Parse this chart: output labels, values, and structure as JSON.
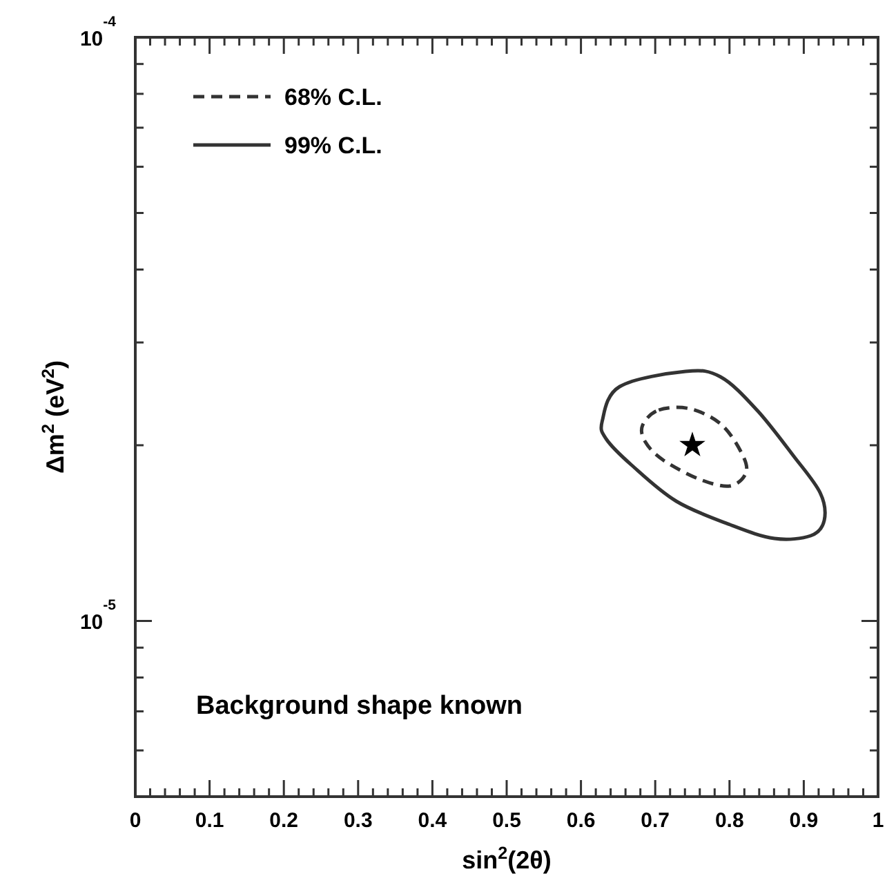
{
  "chart_data": {
    "type": "scatter",
    "xlabel": "sin$^{2}$(2θ)",
    "ylabel": "Δm$^{2}$ (eV$^{2}$)",
    "log": "y",
    "xlim": [
      0,
      1
    ],
    "ylim": [
      5e-06,
      0.0001
    ],
    "xticks": [
      0,
      {
        "value": 0.02,
        "label": null
      },
      {
        "value": 0.04,
        "label": null
      },
      {
        "value": 0.06,
        "label": null
      },
      {
        "value": 0.08,
        "label": null
      },
      0.1,
      {
        "value": 0.12,
        "label": null
      },
      {
        "value": 0.14,
        "label": null
      },
      {
        "value": 0.16,
        "label": null
      },
      {
        "value": 0.18,
        "label": null
      },
      0.2,
      {
        "value": 0.22,
        "label": null
      },
      {
        "value": 0.24,
        "label": null
      },
      {
        "value": 0.26,
        "label": null
      },
      {
        "value": 0.28,
        "label": null
      },
      0.3,
      {
        "value": 0.32,
        "label": null
      },
      {
        "value": 0.34,
        "label": null
      },
      {
        "value": 0.36,
        "label": null
      },
      {
        "value": 0.38,
        "label": null
      },
      0.4,
      {
        "value": 0.42,
        "label": null
      },
      {
        "value": 0.44,
        "label": null
      },
      {
        "value": 0.46,
        "label": null
      },
      {
        "value": 0.48,
        "label": null
      },
      0.5,
      {
        "value": 0.52,
        "label": null
      },
      {
        "value": 0.54,
        "label": null
      },
      {
        "value": 0.56,
        "label": null
      },
      {
        "value": 0.58,
        "label": null
      },
      0.6,
      {
        "value": 0.62,
        "label": null
      },
      {
        "value": 0.64,
        "label": null
      },
      {
        "value": 0.66,
        "label": null
      },
      {
        "value": 0.68,
        "label": null
      },
      0.7,
      {
        "value": 0.72,
        "label": null
      },
      {
        "value": 0.74,
        "label": null
      },
      {
        "value": 0.76,
        "label": null
      },
      {
        "value": 0.78,
        "label": null
      },
      0.8,
      {
        "value": 0.82,
        "label": null
      },
      {
        "value": 0.84,
        "label": null
      },
      {
        "value": 0.86,
        "label": null
      },
      {
        "value": 0.88,
        "label": null
      },
      0.9,
      {
        "value": 0.92,
        "label": null
      },
      {
        "value": 0.94,
        "label": null
      },
      {
        "value": 0.96,
        "label": null
      },
      {
        "value": 0.98,
        "label": null
      },
      1
    ],
    "yticks": [
      {
        "value": 5e-06,
        "label": null
      },
      {
        "value": 6e-06,
        "label": null
      },
      {
        "value": 7e-06,
        "label": null
      },
      {
        "value": 8e-06,
        "label": null
      },
      {
        "value": 9e-06,
        "label": null
      },
      {
        "value": 1e-05,
        "label": "10$^{-5}$"
      },
      {
        "value": 2e-05,
        "label": null
      },
      {
        "value": 3e-05,
        "label": null
      },
      {
        "value": 4e-05,
        "label": null
      },
      {
        "value": 5e-05,
        "label": null
      },
      {
        "value": 6e-05,
        "label": null
      },
      {
        "value": 7e-05,
        "label": null
      },
      {
        "value": 8e-05,
        "label": null
      },
      {
        "value": 9e-05,
        "label": null
      },
      {
        "value": 0.0001,
        "label": "10$^{-4}$"
      }
    ],
    "grid": false,
    "annotations": [
      "68% C.L.",
      "99% C.L.",
      "Background shape known"
    ],
    "series": [
      {
        "marker": "star",
        "color": "#000000",
        "x": [
          0.75
        ],
        "values": [
          2e-05
        ]
      }
    ]
  }
}
